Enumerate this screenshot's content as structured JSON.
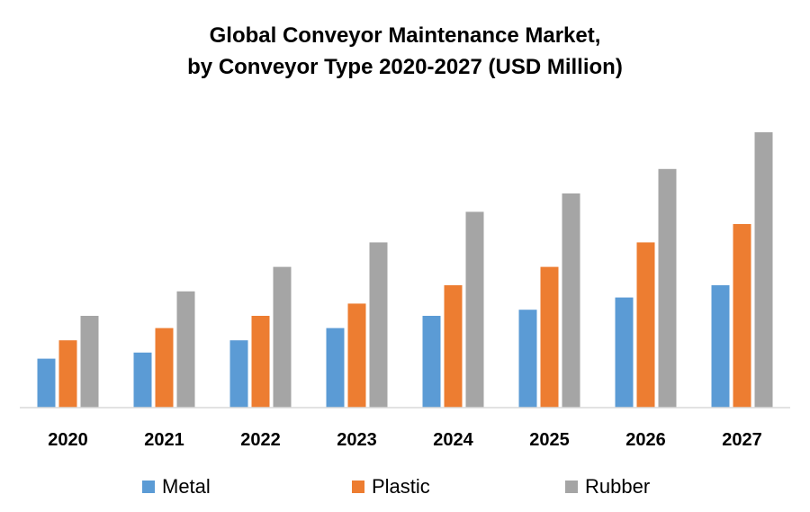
{
  "chart_data": {
    "type": "bar",
    "title_lines": [
      "Global Conveyor Maintenance Market,",
      "by Conveyor Type 2020-2027 (USD Million)"
    ],
    "categories": [
      "2020",
      "2021",
      "2022",
      "2023",
      "2024",
      "2025",
      "2026",
      "2027"
    ],
    "series": [
      {
        "name": "Metal",
        "color": "#5B9BD5",
        "values": [
          8,
          9,
          11,
          13,
          15,
          16,
          18,
          20
        ]
      },
      {
        "name": "Plastic",
        "color": "#ED7D31",
        "values": [
          11,
          13,
          15,
          17,
          20,
          23,
          27,
          30
        ]
      },
      {
        "name": "Rubber",
        "color": "#A5A5A5",
        "values": [
          15,
          19,
          23,
          27,
          32,
          35,
          39,
          45
        ]
      }
    ],
    "ylim": [
      0,
      45
    ],
    "grid": false,
    "legend_position": "bottom"
  }
}
